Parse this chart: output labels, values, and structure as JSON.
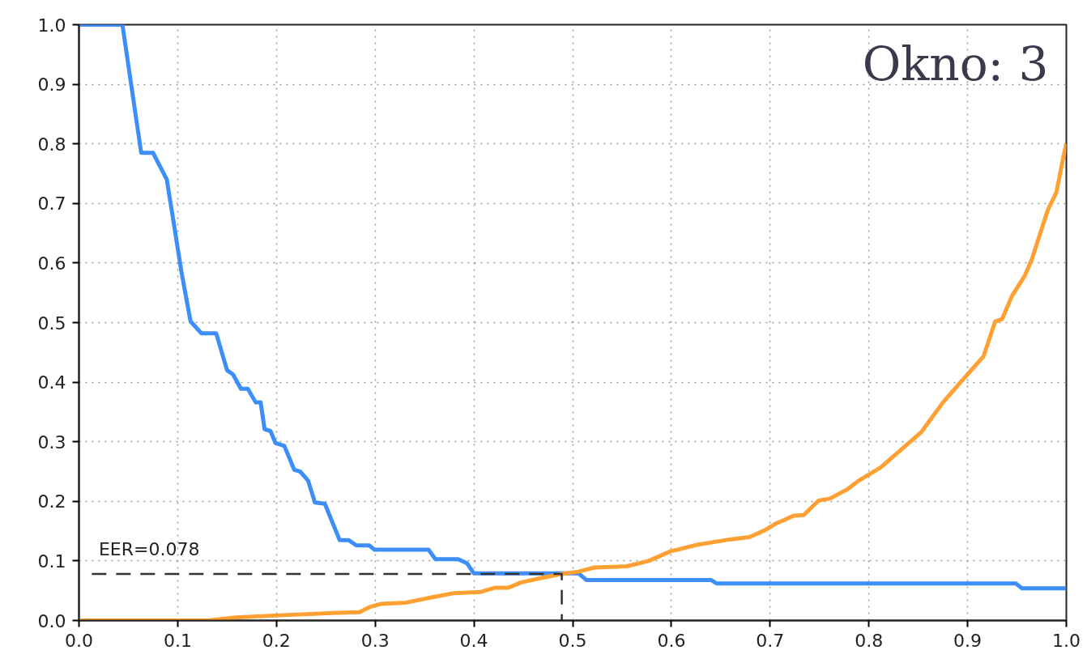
{
  "chart_data": {
    "type": "line",
    "title": "Okno: 3",
    "xlim": [
      0,
      1
    ],
    "ylim": [
      0,
      1
    ],
    "xticks": [
      {
        "value": 0,
        "label": "0.0"
      },
      {
        "value": 0.1,
        "label": "0.1"
      },
      {
        "value": 0.2,
        "label": "0.2"
      },
      {
        "value": 0.3,
        "label": "0.3"
      },
      {
        "value": 0.4,
        "label": "0.4"
      },
      {
        "value": 0.5,
        "label": "0.5"
      },
      {
        "value": 0.6,
        "label": "0.6"
      },
      {
        "value": 0.7,
        "label": "0.7"
      },
      {
        "value": 0.8,
        "label": "0.8"
      },
      {
        "value": 0.9,
        "label": "0.9"
      },
      {
        "value": 1,
        "label": "1.0"
      }
    ],
    "yticks": [
      {
        "value": 0,
        "label": "0.0"
      },
      {
        "value": 0.1,
        "label": "0.1"
      },
      {
        "value": 0.2,
        "label": "0.2"
      },
      {
        "value": 0.3,
        "label": "0.3"
      },
      {
        "value": 0.4,
        "label": "0.4"
      },
      {
        "value": 0.5,
        "label": "0.5"
      },
      {
        "value": 0.6,
        "label": "0.6"
      },
      {
        "value": 0.7,
        "label": "0.7"
      },
      {
        "value": 0.8,
        "label": "0.8"
      },
      {
        "value": 0.9,
        "label": "0.9"
      },
      {
        "value": 1,
        "label": "1.0"
      }
    ],
    "grid": true,
    "series": [
      {
        "color": "#3d8ef8",
        "line_style": "solid",
        "x": [
          0,
          0.044,
          0.063,
          0.075,
          0.089,
          0.104,
          0.113,
          0.124,
          0.139,
          0.15,
          0.156,
          0.164,
          0.171,
          0.179,
          0.184,
          0.188,
          0.194,
          0.199,
          0.208,
          0.218,
          0.224,
          0.232,
          0.239,
          0.249,
          0.264,
          0.273,
          0.281,
          0.294,
          0.299,
          0.354,
          0.361,
          0.384,
          0.393,
          0.4,
          0.506,
          0.514,
          0.64,
          0.646,
          0.949,
          0.955,
          1.0
        ],
        "values": [
          1.0,
          1.0,
          0.785,
          0.785,
          0.74,
          0.583,
          0.502,
          0.482,
          0.482,
          0.42,
          0.413,
          0.389,
          0.389,
          0.366,
          0.366,
          0.321,
          0.318,
          0.298,
          0.293,
          0.253,
          0.25,
          0.235,
          0.198,
          0.196,
          0.135,
          0.135,
          0.126,
          0.126,
          0.119,
          0.119,
          0.103,
          0.103,
          0.096,
          0.079,
          0.079,
          0.068,
          0.068,
          0.062,
          0.062,
          0.054,
          0.054
        ]
      },
      {
        "color": "#ffa033",
        "line_style": "solid",
        "x": [
          0,
          0.131,
          0.158,
          0.207,
          0.262,
          0.284,
          0.295,
          0.306,
          0.331,
          0.358,
          0.38,
          0.407,
          0.421,
          0.435,
          0.448,
          0.473,
          0.489,
          0.506,
          0.522,
          0.555,
          0.577,
          0.599,
          0.626,
          0.659,
          0.679,
          0.694,
          0.705,
          0.724,
          0.734,
          0.749,
          0.761,
          0.779,
          0.79,
          0.812,
          0.837,
          0.853,
          0.875,
          0.894,
          0.916,
          0.928,
          0.935,
          0.945,
          0.958,
          0.965,
          0.981,
          0.99,
          0.997,
          1.0
        ],
        "values": [
          0,
          0,
          0.005,
          0.009,
          0.013,
          0.014,
          0.023,
          0.028,
          0.03,
          0.039,
          0.046,
          0.048,
          0.055,
          0.055,
          0.064,
          0.073,
          0.078,
          0.082,
          0.089,
          0.091,
          0.1,
          0.116,
          0.127,
          0.136,
          0.14,
          0.151,
          0.162,
          0.176,
          0.177,
          0.201,
          0.205,
          0.221,
          0.235,
          0.257,
          0.293,
          0.316,
          0.366,
          0.402,
          0.443,
          0.502,
          0.506,
          0.545,
          0.579,
          0.606,
          0.688,
          0.719,
          0.778,
          0.8
        ]
      },
      {
        "color": "#333333",
        "line_style": "dashed",
        "x": [
          0.013,
          0.489,
          0.489
        ],
        "values": [
          0.078,
          0.078,
          0
        ]
      }
    ],
    "annotations": [
      {
        "text": "EER=0.078",
        "x": 0.02,
        "y": 0.078
      }
    ]
  }
}
